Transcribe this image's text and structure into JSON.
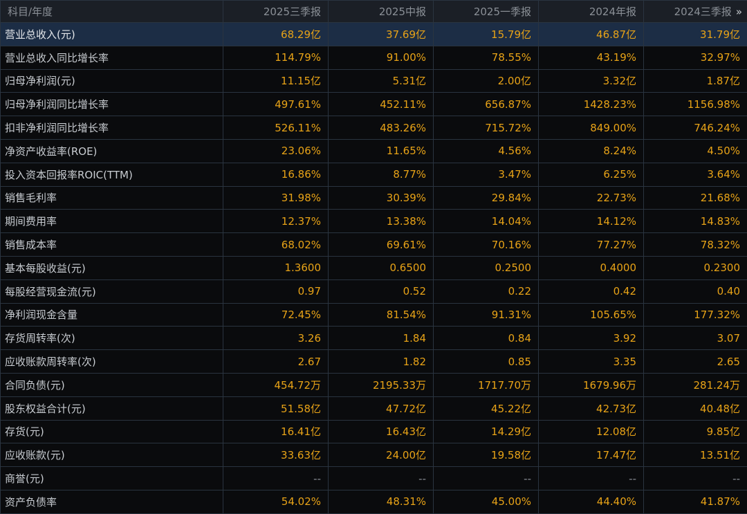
{
  "header": {
    "first_col": "科目/年度",
    "periods": [
      "2025三季报",
      "2025中报",
      "2025一季报",
      "2024年报",
      "2024三季报"
    ],
    "more_icon_glyph": "»"
  },
  "rows": [
    {
      "label": "营业总收入(元)",
      "values": [
        "68.29亿",
        "37.69亿",
        "15.79亿",
        "46.87亿",
        "31.79亿"
      ]
    },
    {
      "label": "营业总收入同比增长率",
      "values": [
        "114.79%",
        "91.00%",
        "78.55%",
        "43.19%",
        "32.97%"
      ]
    },
    {
      "label": "归母净利润(元)",
      "values": [
        "11.15亿",
        "5.31亿",
        "2.00亿",
        "3.32亿",
        "1.87亿"
      ]
    },
    {
      "label": "归母净利润同比增长率",
      "values": [
        "497.61%",
        "452.11%",
        "656.87%",
        "1428.23%",
        "1156.98%"
      ]
    },
    {
      "label": "扣非净利润同比增长率",
      "values": [
        "526.11%",
        "483.26%",
        "715.72%",
        "849.00%",
        "746.24%"
      ]
    },
    {
      "label": "净资产收益率(ROE)",
      "values": [
        "23.06%",
        "11.65%",
        "4.56%",
        "8.24%",
        "4.50%"
      ]
    },
    {
      "label": "投入资本回报率ROIC(TTM)",
      "values": [
        "16.86%",
        "8.77%",
        "3.47%",
        "6.25%",
        "3.64%"
      ]
    },
    {
      "label": "销售毛利率",
      "values": [
        "31.98%",
        "30.39%",
        "29.84%",
        "22.73%",
        "21.68%"
      ]
    },
    {
      "label": "期间费用率",
      "values": [
        "12.37%",
        "13.38%",
        "14.04%",
        "14.12%",
        "14.83%"
      ]
    },
    {
      "label": "销售成本率",
      "values": [
        "68.02%",
        "69.61%",
        "70.16%",
        "77.27%",
        "78.32%"
      ]
    },
    {
      "label": "基本每股收益(元)",
      "values": [
        "1.3600",
        "0.6500",
        "0.2500",
        "0.4000",
        "0.2300"
      ]
    },
    {
      "label": "每股经营现金流(元)",
      "values": [
        "0.97",
        "0.52",
        "0.22",
        "0.42",
        "0.40"
      ]
    },
    {
      "label": "净利润现金含量",
      "values": [
        "72.45%",
        "81.54%",
        "91.31%",
        "105.65%",
        "177.32%"
      ]
    },
    {
      "label": "存货周转率(次)",
      "values": [
        "3.26",
        "1.84",
        "0.84",
        "3.92",
        "3.07"
      ]
    },
    {
      "label": "应收账款周转率(次)",
      "values": [
        "2.67",
        "1.82",
        "0.85",
        "3.35",
        "2.65"
      ]
    },
    {
      "label": "合同负债(元)",
      "values": [
        "454.72万",
        "2195.33万",
        "1717.70万",
        "1679.96万",
        "281.24万"
      ]
    },
    {
      "label": "股东权益合计(元)",
      "values": [
        "51.58亿",
        "47.72亿",
        "45.22亿",
        "42.73亿",
        "40.48亿"
      ]
    },
    {
      "label": "存货(元)",
      "values": [
        "16.41亿",
        "16.43亿",
        "14.29亿",
        "12.08亿",
        "9.85亿"
      ]
    },
    {
      "label": "应收账款(元)",
      "values": [
        "33.63亿",
        "24.00亿",
        "19.58亿",
        "17.47亿",
        "13.51亿"
      ]
    },
    {
      "label": "商誉(元)",
      "values": [
        "--",
        "--",
        "--",
        "--",
        "--"
      ]
    },
    {
      "label": "资产负债率",
      "values": [
        "54.02%",
        "48.31%",
        "45.00%",
        "44.40%",
        "41.87%"
      ]
    }
  ],
  "colors": {
    "value_text": "#e8a317",
    "label_text": "#c8ccd1",
    "header_text": "#8a8f96",
    "highlight_row_bg": "#1c2d45",
    "background": "#0a0b0d"
  }
}
